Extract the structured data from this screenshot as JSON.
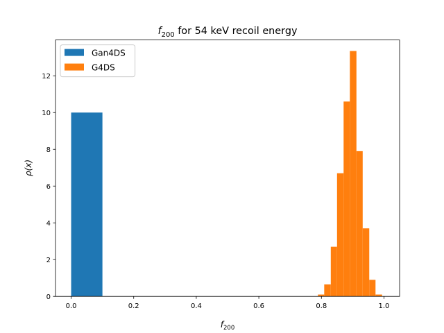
{
  "chart_data": {
    "type": "histogram",
    "title_main": "f",
    "title_sub": "200",
    "title_rest": " for 54 keV recoil energy",
    "xlabel_main": "f",
    "xlabel_sub": "200",
    "ylabel": "ρ(x)",
    "xlim": [
      -0.05,
      1.05
    ],
    "ylim": [
      0,
      13.95
    ],
    "xticks": [
      0.0,
      0.2,
      0.4,
      0.6,
      0.8,
      1.0
    ],
    "xtick_labels": [
      "0.0",
      "0.2",
      "0.4",
      "0.6",
      "0.8",
      "1.0"
    ],
    "yticks": [
      0,
      2,
      4,
      6,
      8,
      10,
      12
    ],
    "ytick_labels": [
      "0",
      "2",
      "4",
      "6",
      "8",
      "10",
      "12"
    ],
    "legend_position": "top-left",
    "grid": false,
    "series": [
      {
        "name": "Gan4DS",
        "color": "#1f77b4",
        "bins": [
          {
            "x0": 0.0,
            "x1": 0.1,
            "y": 10.0
          }
        ]
      },
      {
        "name": "G4DS",
        "color": "#ff7f0e",
        "bins": [
          {
            "x0": 0.789,
            "x1": 0.809,
            "y": 0.1
          },
          {
            "x0": 0.809,
            "x1": 0.83,
            "y": 0.65
          },
          {
            "x0": 0.83,
            "x1": 0.85,
            "y": 2.7
          },
          {
            "x0": 0.85,
            "x1": 0.871,
            "y": 6.7
          },
          {
            "x0": 0.871,
            "x1": 0.891,
            "y": 10.6
          },
          {
            "x0": 0.891,
            "x1": 0.912,
            "y": 13.35
          },
          {
            "x0": 0.912,
            "x1": 0.932,
            "y": 7.9
          },
          {
            "x0": 0.932,
            "x1": 0.953,
            "y": 3.7
          },
          {
            "x0": 0.953,
            "x1": 0.973,
            "y": 0.9
          },
          {
            "x0": 0.973,
            "x1": 0.994,
            "y": 0.1
          }
        ]
      }
    ]
  }
}
